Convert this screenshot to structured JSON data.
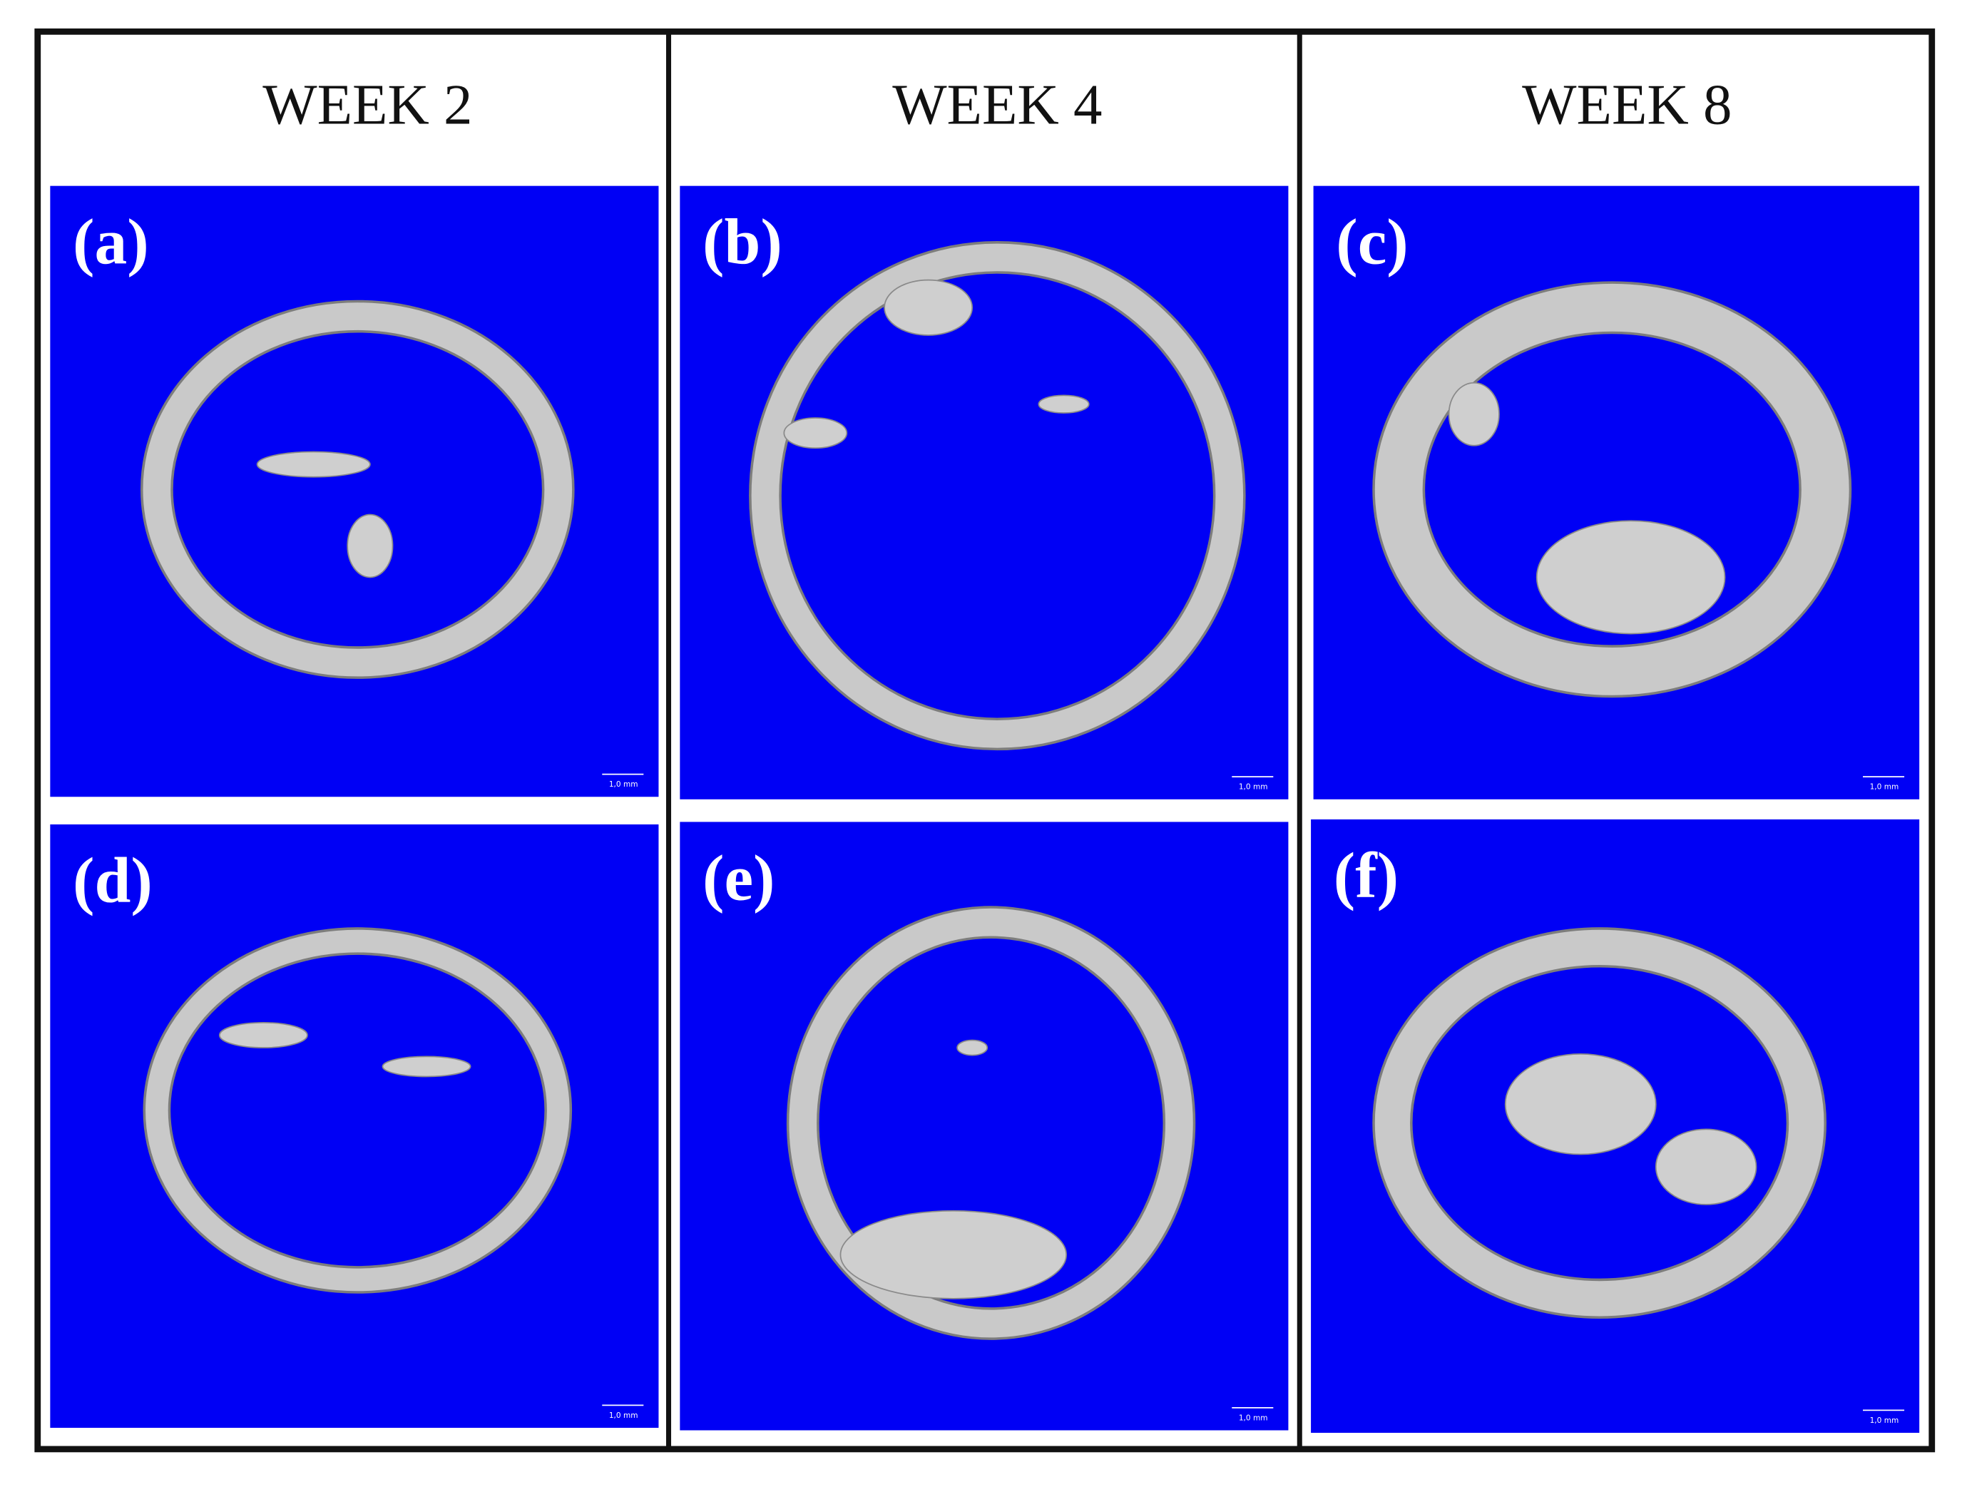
{
  "headers": [
    "WEEK 2",
    "WEEK 4",
    "WEEK 8"
  ],
  "panels": [
    {
      "label": "(a)",
      "scale": "1,0 mm"
    },
    {
      "label": "(b)",
      "scale": "1,0 mm"
    },
    {
      "label": "(c)",
      "scale": "1,0 mm"
    },
    {
      "label": "(d)",
      "scale": "1,0 mm"
    },
    {
      "label": "(e)",
      "scale": "1,0 mm"
    },
    {
      "label": "(f)",
      "scale": "1,0 mm"
    }
  ]
}
